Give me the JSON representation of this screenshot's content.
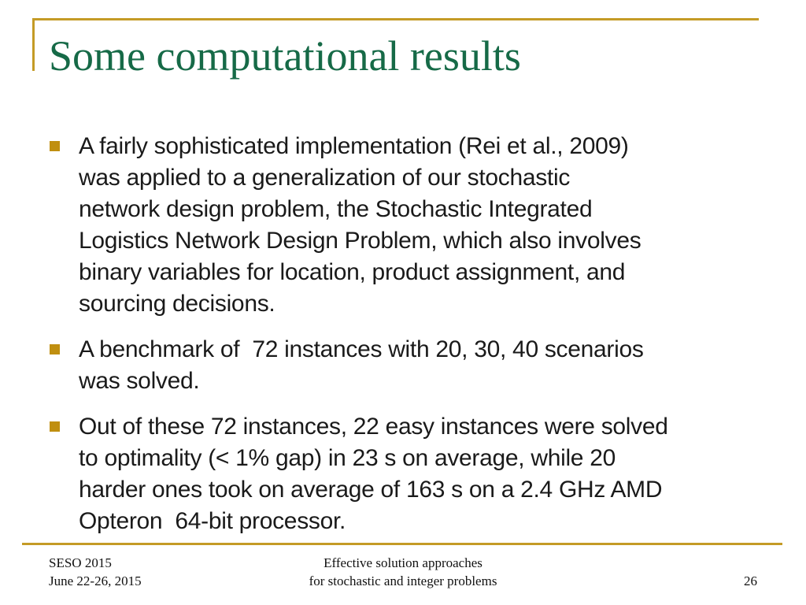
{
  "slide": {
    "title": "Some computational results",
    "bullets": [
      {
        "lines": [
          "A fairly sophisticated implementation (Rei et al., 2009)",
          "was applied to a generalization of our stochastic",
          "network design problem, the Stochastic Integrated",
          "Logistics Network Design Problem, which also involves",
          "binary variables for location, product assignment, and",
          "sourcing decisions."
        ]
      },
      {
        "lines": [
          "A benchmark of  72 instances with 20, 30, 40 scenarios",
          "was solved."
        ]
      },
      {
        "lines": [
          "Out of these 72 instances, 22 easy instances were solved",
          "to optimality (< 1% gap) in 23 s on average, while 20",
          "harder ones took on average of 163 s on a 2.4 GHz AMD",
          "Opteron  64-bit processor."
        ]
      }
    ],
    "footer": {
      "left_line1": "SESO 2015",
      "left_line2": "June 22-26, 2015",
      "center_line1": "Effective solution approaches",
      "center_line2": "for stochastic and integer problems",
      "page_number": "26"
    },
    "colors": {
      "title_green": "#166A47",
      "accent_gold": "#C49B26",
      "bullet_gold": "#C08F10"
    }
  }
}
